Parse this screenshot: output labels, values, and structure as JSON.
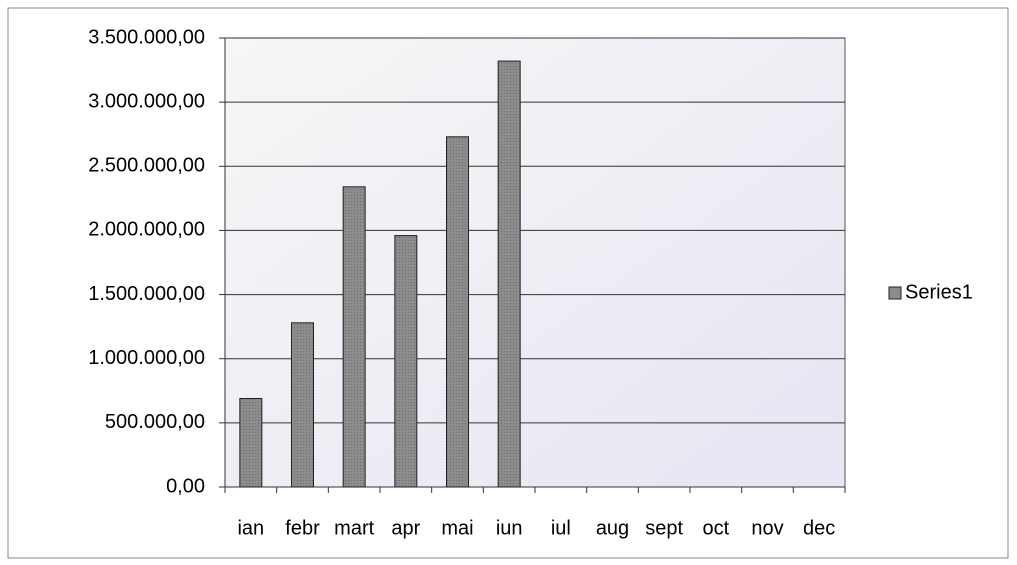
{
  "chart_data": {
    "type": "bar",
    "categories": [
      "ian",
      "febr",
      "mart",
      "apr",
      "mai",
      "iun",
      "iul",
      "aug",
      "sept",
      "oct",
      "nov",
      "dec"
    ],
    "series": [
      {
        "name": "Series1",
        "color": "#8c8c8c",
        "values": [
          690000,
          1280000,
          2340000,
          1960000,
          2730000,
          3320000,
          null,
          null,
          null,
          null,
          null,
          null
        ]
      }
    ],
    "ylim": [
      0,
      3500000
    ],
    "yticks": [
      {
        "value": 0,
        "label": "0,00"
      },
      {
        "value": 500000,
        "label": "500.000,00"
      },
      {
        "value": 1000000,
        "label": "1.000.000,00"
      },
      {
        "value": 1500000,
        "label": "1.500.000,00"
      },
      {
        "value": 2000000,
        "label": "2.000.000,00"
      },
      {
        "value": 2500000,
        "label": "2.500.000,00"
      },
      {
        "value": 3000000,
        "label": "3.000.000,00"
      },
      {
        "value": 3500000,
        "label": "3.500.000,00"
      }
    ],
    "grid": true,
    "legend": "right"
  }
}
